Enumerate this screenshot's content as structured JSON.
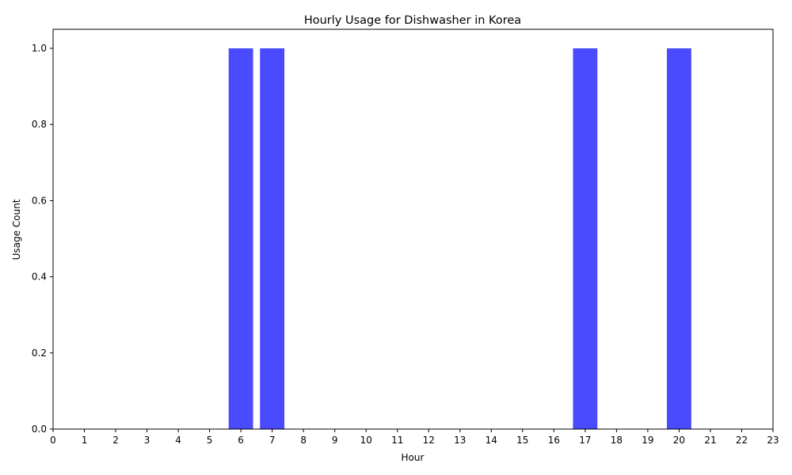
{
  "chart_data": {
    "type": "bar",
    "title": "Hourly Usage for Dishwasher in Korea",
    "xlabel": "Hour",
    "ylabel": "Usage Count",
    "categories": [
      "0",
      "1",
      "2",
      "3",
      "4",
      "5",
      "6",
      "7",
      "8",
      "9",
      "10",
      "11",
      "12",
      "13",
      "14",
      "15",
      "16",
      "17",
      "18",
      "19",
      "20",
      "21",
      "22",
      "23"
    ],
    "values": [
      0,
      0,
      0,
      0,
      0,
      0,
      1,
      1,
      0,
      0,
      0,
      0,
      0,
      0,
      0,
      0,
      0,
      1,
      0,
      0,
      1,
      0,
      0,
      0
    ],
    "ylim": [
      0,
      1.05
    ],
    "yticks": [
      "0.0",
      "0.2",
      "0.4",
      "0.6",
      "0.8",
      "1.0"
    ],
    "bar_color": "#4a4aff",
    "grid": false,
    "legend": "none"
  }
}
